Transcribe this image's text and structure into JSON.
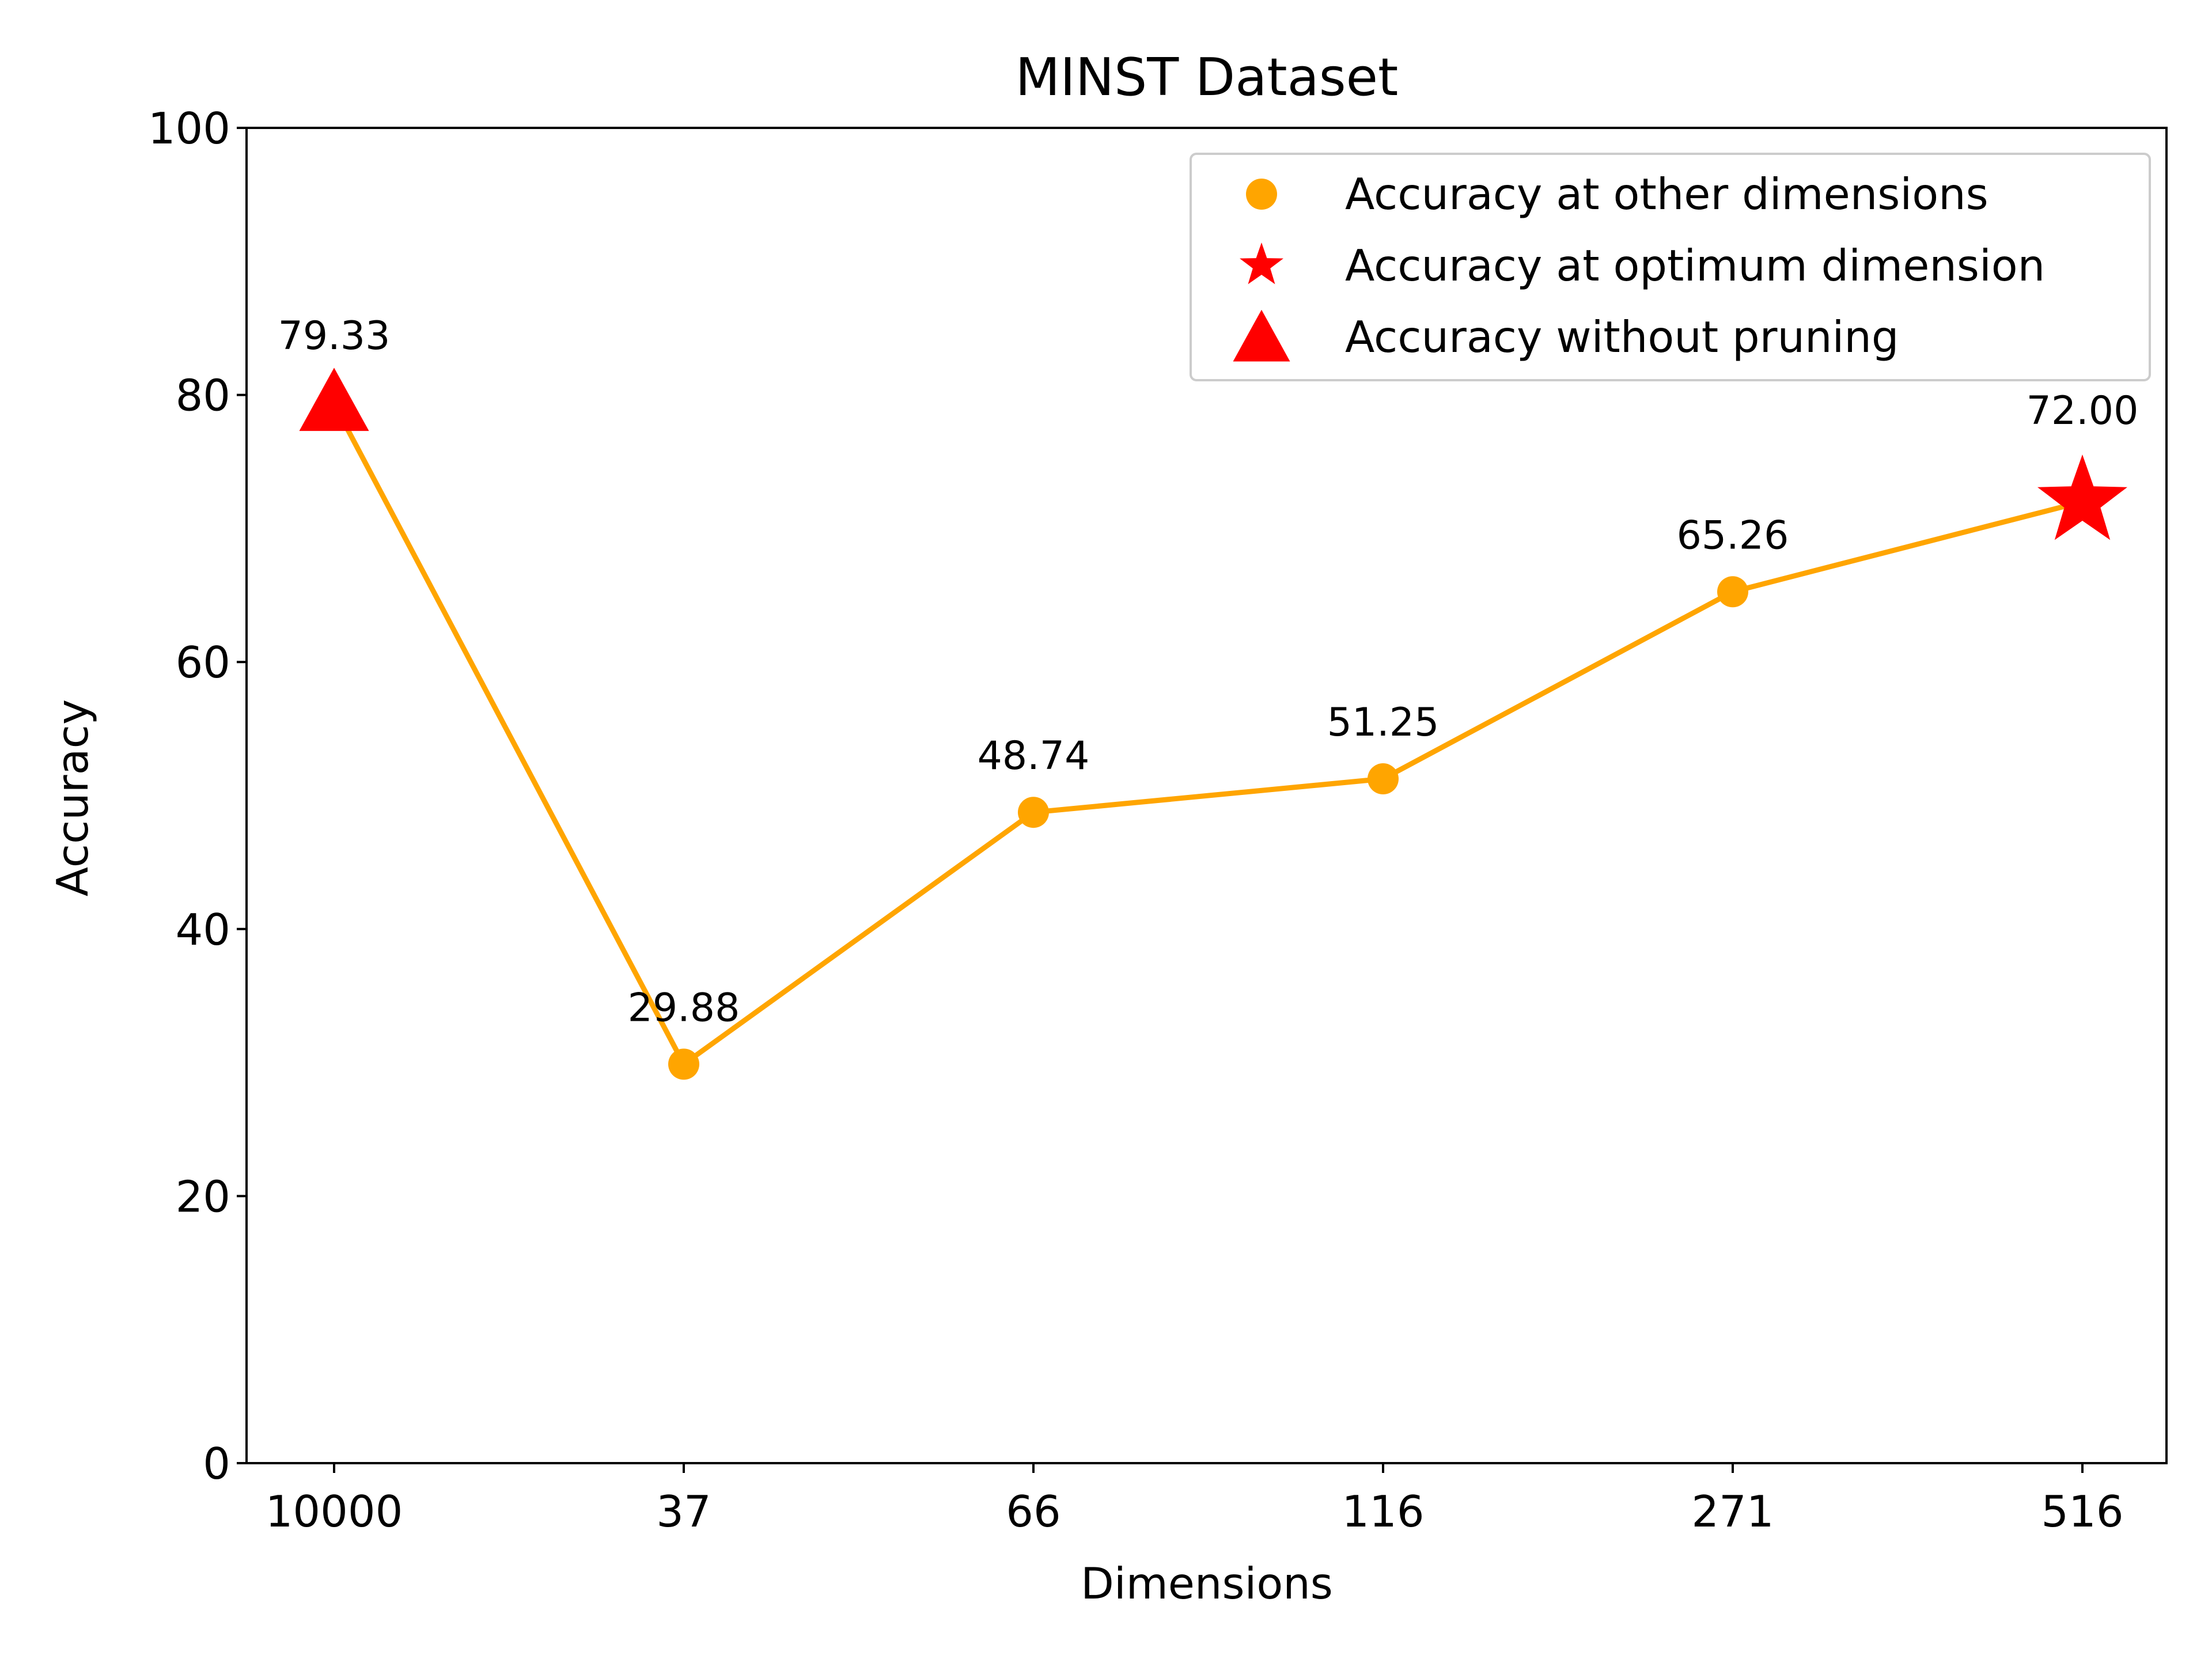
{
  "chart_data": {
    "type": "line",
    "title": "MINST Dataset",
    "xlabel": "Dimensions",
    "ylabel": "Accuracy",
    "categories": [
      "10000",
      "37",
      "66",
      "116",
      "271",
      "516"
    ],
    "values": [
      79.33,
      29.88,
      48.74,
      51.25,
      65.26,
      72.0
    ],
    "value_labels": [
      "79.33",
      "29.88",
      "48.74",
      "51.25",
      "65.26",
      "72.00"
    ],
    "marker_types": [
      "triangle",
      "circle",
      "circle",
      "circle",
      "circle",
      "star"
    ],
    "ylim": [
      0,
      100
    ],
    "yticks": [
      0,
      20,
      40,
      60,
      80,
      100
    ],
    "grid": false,
    "legend_position": "top-right",
    "legend": [
      {
        "label": "Accuracy at other dimensions",
        "marker": "circle",
        "color": "#FFA500"
      },
      {
        "label": "Accuracy at optimum dimension",
        "marker": "star",
        "color": "#FF0000"
      },
      {
        "label": "Accuracy without pruning",
        "marker": "triangle",
        "color": "#FF0000"
      }
    ],
    "colors": {
      "line": "#FFA500",
      "highlight": "#FF0000",
      "axes": "#000000"
    }
  }
}
